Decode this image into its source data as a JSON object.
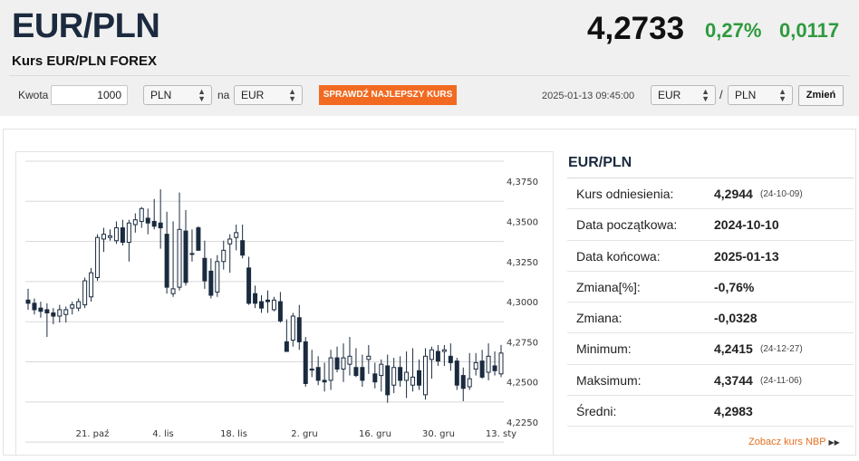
{
  "header": {
    "pair": "EUR/PLN",
    "subtitle": "Kurs EUR/PLN FOREX",
    "price": "4,2733",
    "change_pct": "0,27%",
    "change_abs": "0,0117",
    "change_color": "#2f9a3e"
  },
  "converter": {
    "amount_label": "Kwota",
    "amount_value": "1000",
    "from_currency": "PLN",
    "na_label": "na",
    "to_currency": "EUR",
    "check_button": "SPRAWDŹ NAJLEPSZY KURS",
    "check_button_color": "#f26a21",
    "timestamp": "2025-01-13 09:45:00",
    "pair_from": "EUR",
    "slash": "/",
    "pair_to": "PLN",
    "change_button": "Zmień"
  },
  "stats": {
    "title": "EUR/PLN",
    "rows": [
      {
        "label": "Kurs odniesienia:",
        "value": "4,2944",
        "date": "(24-10-09)"
      },
      {
        "label": "Data początkowa:",
        "value": "2024-10-10",
        "date": ""
      },
      {
        "label": "Data końcowa:",
        "value": "2025-01-13",
        "date": ""
      },
      {
        "label": "Zmiana[%]:",
        "value": "-0,76%",
        "date": ""
      },
      {
        "label": "Zmiana:",
        "value": "-0,0328",
        "date": ""
      },
      {
        "label": "Minimum:",
        "value": "4,2415",
        "date": "(24-12-27)"
      },
      {
        "label": "Maksimum:",
        "value": "4,3744",
        "date": "(24-11-06)"
      },
      {
        "label": "Średni:",
        "value": "4,2983",
        "date": ""
      }
    ],
    "nbp_link": "Zobacz kurs NBP"
  },
  "chart_data": {
    "type": "candlestick",
    "yticks": [
      "4,3750",
      "4,3500",
      "4,3250",
      "4,3000",
      "4,2750",
      "4,2500",
      "4,2250"
    ],
    "ylim": [
      4.225,
      4.3875
    ],
    "xticks": [
      "21. paź",
      "4. lis",
      "18. lis",
      "2. gru",
      "16. gru",
      "30. gru",
      "13. sty"
    ],
    "up_color": "#ffffff",
    "down_color": "#1a2b3f",
    "candles": [
      {
        "o": 4.301,
        "h": 4.308,
        "l": 4.295,
        "c": 4.299
      },
      {
        "o": 4.299,
        "h": 4.302,
        "l": 4.292,
        "c": 4.295
      },
      {
        "o": 4.296,
        "h": 4.3,
        "l": 4.29,
        "c": 4.294
      },
      {
        "o": 4.295,
        "h": 4.299,
        "l": 4.278,
        "c": 4.293
      },
      {
        "o": 4.293,
        "h": 4.296,
        "l": 4.286,
        "c": 4.291
      },
      {
        "o": 4.291,
        "h": 4.298,
        "l": 4.287,
        "c": 4.295
      },
      {
        "o": 4.292,
        "h": 4.297,
        "l": 4.287,
        "c": 4.295
      },
      {
        "o": 4.296,
        "h": 4.3,
        "l": 4.292,
        "c": 4.298
      },
      {
        "o": 4.296,
        "h": 4.302,
        "l": 4.294,
        "c": 4.3
      },
      {
        "o": 4.298,
        "h": 4.315,
        "l": 4.296,
        "c": 4.313
      },
      {
        "o": 4.303,
        "h": 4.321,
        "l": 4.3,
        "c": 4.318
      },
      {
        "o": 4.315,
        "h": 4.342,
        "l": 4.313,
        "c": 4.34
      },
      {
        "o": 4.339,
        "h": 4.346,
        "l": 4.331,
        "c": 4.342
      },
      {
        "o": 4.34,
        "h": 4.345,
        "l": 4.338,
        "c": 4.341
      },
      {
        "o": 4.338,
        "h": 4.35,
        "l": 4.336,
        "c": 4.346
      },
      {
        "o": 4.346,
        "h": 4.351,
        "l": 4.335,
        "c": 4.337
      },
      {
        "o": 4.337,
        "h": 4.351,
        "l": 4.325,
        "c": 4.349
      },
      {
        "o": 4.348,
        "h": 4.355,
        "l": 4.343,
        "c": 4.351
      },
      {
        "o": 4.35,
        "h": 4.359,
        "l": 4.346,
        "c": 4.358
      },
      {
        "o": 4.352,
        "h": 4.358,
        "l": 4.342,
        "c": 4.349
      },
      {
        "o": 4.35,
        "h": 4.364,
        "l": 4.345,
        "c": 4.347
      },
      {
        "o": 4.349,
        "h": 4.37,
        "l": 4.333,
        "c": 4.346
      },
      {
        "o": 4.342,
        "h": 4.356,
        "l": 4.305,
        "c": 4.309
      },
      {
        "o": 4.305,
        "h": 4.35,
        "l": 4.303,
        "c": 4.308
      },
      {
        "o": 4.309,
        "h": 4.368,
        "l": 4.307,
        "c": 4.345
      },
      {
        "o": 4.344,
        "h": 4.357,
        "l": 4.31,
        "c": 4.312
      },
      {
        "o": 4.33,
        "h": 4.345,
        "l": 4.325,
        "c": 4.33
      },
      {
        "o": 4.346,
        "h": 4.347,
        "l": 4.332,
        "c": 4.332
      },
      {
        "o": 4.327,
        "h": 4.338,
        "l": 4.308,
        "c": 4.313
      },
      {
        "o": 4.319,
        "h": 4.327,
        "l": 4.302,
        "c": 4.304
      },
      {
        "o": 4.306,
        "h": 4.329,
        "l": 4.303,
        "c": 4.325
      },
      {
        "o": 4.325,
        "h": 4.338,
        "l": 4.32,
        "c": 4.332
      },
      {
        "o": 4.336,
        "h": 4.342,
        "l": 4.318,
        "c": 4.339
      },
      {
        "o": 4.34,
        "h": 4.348,
        "l": 4.332,
        "c": 4.343
      },
      {
        "o": 4.338,
        "h": 4.348,
        "l": 4.327,
        "c": 4.329
      },
      {
        "o": 4.321,
        "h": 4.328,
        "l": 4.298,
        "c": 4.299
      },
      {
        "o": 4.305,
        "h": 4.31,
        "l": 4.296,
        "c": 4.299
      },
      {
        "o": 4.3,
        "h": 4.304,
        "l": 4.293,
        "c": 4.296
      },
      {
        "o": 4.301,
        "h": 4.307,
        "l": 4.293,
        "c": 4.3
      },
      {
        "o": 4.295,
        "h": 4.303,
        "l": 4.294,
        "c": 4.301
      },
      {
        "o": 4.3,
        "h": 4.306,
        "l": 4.287,
        "c": 4.288
      },
      {
        "o": 4.275,
        "h": 4.289,
        "l": 4.269,
        "c": 4.269
      },
      {
        "o": 4.276,
        "h": 4.293,
        "l": 4.272,
        "c": 4.291
      },
      {
        "o": 4.29,
        "h": 4.298,
        "l": 4.27,
        "c": 4.275
      },
      {
        "o": 4.275,
        "h": 4.278,
        "l": 4.247,
        "c": 4.249
      },
      {
        "o": 4.258,
        "h": 4.27,
        "l": 4.253,
        "c": 4.258
      },
      {
        "o": 4.259,
        "h": 4.266,
        "l": 4.248,
        "c": 4.251
      },
      {
        "o": 4.251,
        "h": 4.262,
        "l": 4.244,
        "c": 4.25
      },
      {
        "o": 4.251,
        "h": 4.27,
        "l": 4.245,
        "c": 4.265
      },
      {
        "o": 4.265,
        "h": 4.272,
        "l": 4.256,
        "c": 4.258
      },
      {
        "o": 4.258,
        "h": 4.274,
        "l": 4.25,
        "c": 4.265
      },
      {
        "o": 4.261,
        "h": 4.278,
        "l": 4.254,
        "c": 4.266
      },
      {
        "o": 4.259,
        "h": 4.271,
        "l": 4.253,
        "c": 4.254
      },
      {
        "o": 4.259,
        "h": 4.267,
        "l": 4.247,
        "c": 4.251
      },
      {
        "o": 4.264,
        "h": 4.273,
        "l": 4.255,
        "c": 4.266
      },
      {
        "o": 4.255,
        "h": 4.262,
        "l": 4.246,
        "c": 4.25
      },
      {
        "o": 4.254,
        "h": 4.264,
        "l": 4.244,
        "c": 4.261
      },
      {
        "o": 4.26,
        "h": 4.267,
        "l": 4.237,
        "c": 4.242
      },
      {
        "o": 4.248,
        "h": 4.265,
        "l": 4.243,
        "c": 4.259
      },
      {
        "o": 4.259,
        "h": 4.266,
        "l": 4.247,
        "c": 4.251
      },
      {
        "o": 4.251,
        "h": 4.269,
        "l": 4.24,
        "c": 4.256
      },
      {
        "o": 4.248,
        "h": 4.271,
        "l": 4.244,
        "c": 4.253
      },
      {
        "o": 4.257,
        "h": 4.264,
        "l": 4.245,
        "c": 4.248
      },
      {
        "o": 4.242,
        "h": 4.271,
        "l": 4.239,
        "c": 4.266
      },
      {
        "o": 4.264,
        "h": 4.272,
        "l": 4.252,
        "c": 4.27
      },
      {
        "o": 4.269,
        "h": 4.273,
        "l": 4.26,
        "c": 4.263
      },
      {
        "o": 4.269,
        "h": 4.273,
        "l": 4.26,
        "c": 4.27
      },
      {
        "o": 4.266,
        "h": 4.274,
        "l": 4.257,
        "c": 4.262
      },
      {
        "o": 4.263,
        "h": 4.265,
        "l": 4.245,
        "c": 4.248
      },
      {
        "o": 4.254,
        "h": 4.259,
        "l": 4.238,
        "c": 4.246
      },
      {
        "o": 4.247,
        "h": 4.268,
        "l": 4.245,
        "c": 4.252
      },
      {
        "o": 4.258,
        "h": 4.268,
        "l": 4.254,
        "c": 4.262
      },
      {
        "o": 4.263,
        "h": 4.27,
        "l": 4.252,
        "c": 4.253
      },
      {
        "o": 4.256,
        "h": 4.274,
        "l": 4.251,
        "c": 4.266
      },
      {
        "o": 4.26,
        "h": 4.269,
        "l": 4.254,
        "c": 4.257
      },
      {
        "o": 4.255,
        "h": 4.273,
        "l": 4.253,
        "c": 4.268
      }
    ]
  }
}
